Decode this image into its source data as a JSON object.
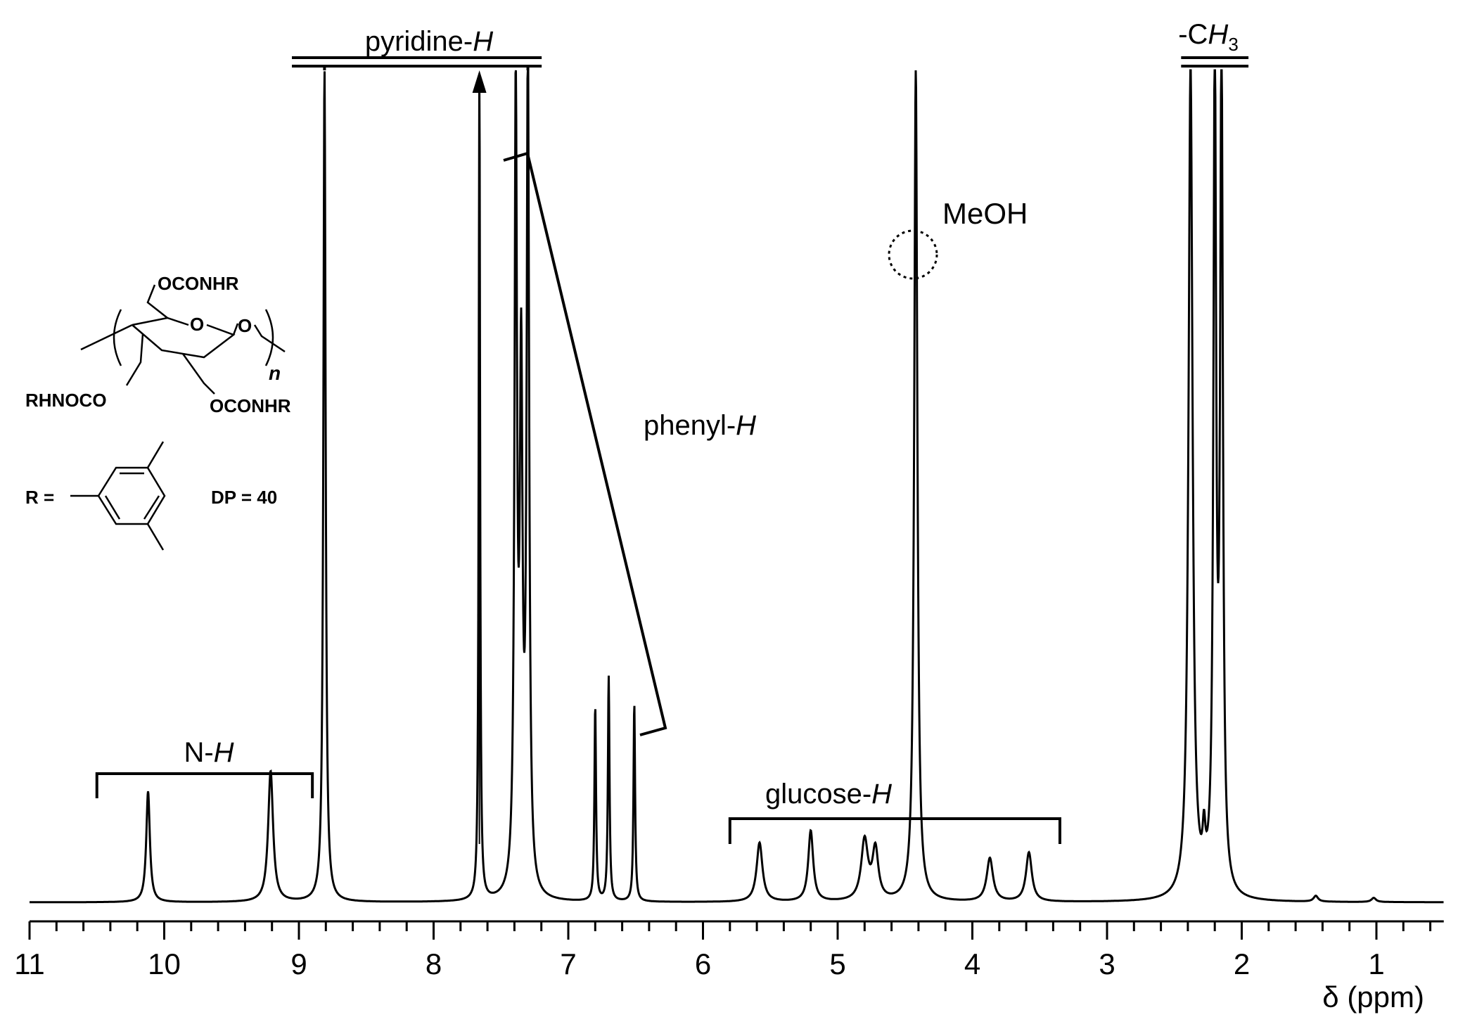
{
  "chart_data": {
    "type": "line",
    "x_axis": {
      "label": "δ (ppm)",
      "range": [
        11,
        0.5
      ],
      "reversed": true,
      "major_ticks": [
        11,
        10,
        9,
        8,
        7,
        6,
        5,
        4,
        3,
        2,
        1
      ],
      "tick_labels": [
        "11",
        "10",
        "9",
        "8",
        "7",
        "6",
        "5",
        "4",
        "3",
        "2",
        "1"
      ],
      "minor_step": 0.2
    },
    "y_axis": {
      "shown": false
    },
    "grid": false,
    "baseline": 0,
    "peaks": [
      {
        "x": 10.12,
        "height": 0.133,
        "width": 0.016
      },
      {
        "x": 9.21,
        "height": 0.157,
        "width": 0.022
      },
      {
        "x": 8.81,
        "height": 1.0,
        "width": 0.01
      },
      {
        "x": 7.66,
        "height": 1.0,
        "width": 0.006
      },
      {
        "x": 7.39,
        "height": 0.955,
        "width": 0.011
      },
      {
        "x": 7.35,
        "height": 0.6,
        "width": 0.012
      },
      {
        "x": 7.3,
        "height": 1.0,
        "width": 0.011
      },
      {
        "x": 6.8,
        "height": 0.234,
        "width": 0.007
      },
      {
        "x": 6.7,
        "height": 0.27,
        "width": 0.007
      },
      {
        "x": 6.51,
        "height": 0.238,
        "width": 0.007
      },
      {
        "x": 5.58,
        "height": 0.071,
        "width": 0.026
      },
      {
        "x": 5.2,
        "height": 0.085,
        "width": 0.022
      },
      {
        "x": 4.8,
        "height": 0.072,
        "width": 0.03
      },
      {
        "x": 4.72,
        "height": 0.06,
        "width": 0.026
      },
      {
        "x": 4.42,
        "height": 1.0,
        "width": 0.014
      },
      {
        "x": 3.87,
        "height": 0.052,
        "width": 0.028
      },
      {
        "x": 3.58,
        "height": 0.059,
        "width": 0.026
      },
      {
        "x": 2.38,
        "height": 1.0,
        "width": 0.018
      },
      {
        "x": 2.28,
        "height": 0.05,
        "width": 0.012
      },
      {
        "x": 2.2,
        "height": 1.0,
        "width": 0.012
      },
      {
        "x": 2.15,
        "height": 1.0,
        "width": 0.012
      },
      {
        "x": 1.45,
        "height": 0.007,
        "width": 0.02
      },
      {
        "x": 1.02,
        "height": 0.005,
        "width": 0.02
      }
    ],
    "annotations": [
      {
        "text": "N-",
        "italic": "H",
        "x_from": 10.5,
        "x_to": 8.9
      },
      {
        "text": "pyridine-",
        "italic": "H",
        "x_from": 9.0,
        "x_to": 7.25
      },
      {
        "text": "phenyl-",
        "italic": "H"
      },
      {
        "text": "MeOH",
        "x": 4.42
      },
      {
        "text": "glucose-",
        "italic": "H",
        "x_from": 5.8,
        "x_to": 3.35
      },
      {
        "text": "-C",
        "italic": "H",
        "subscript": "3",
        "x_from": 2.45,
        "x_to": 1.95
      }
    ],
    "structure": {
      "top_substituent": "OCONHR",
      "ring_oxygen": "O",
      "glycosidic_oxygen": "O",
      "left_substituent": "RHNOCO",
      "right_substituent": "OCONHR",
      "repeat": "n",
      "r_label": "R =",
      "dp_label": "DP = 40"
    }
  }
}
